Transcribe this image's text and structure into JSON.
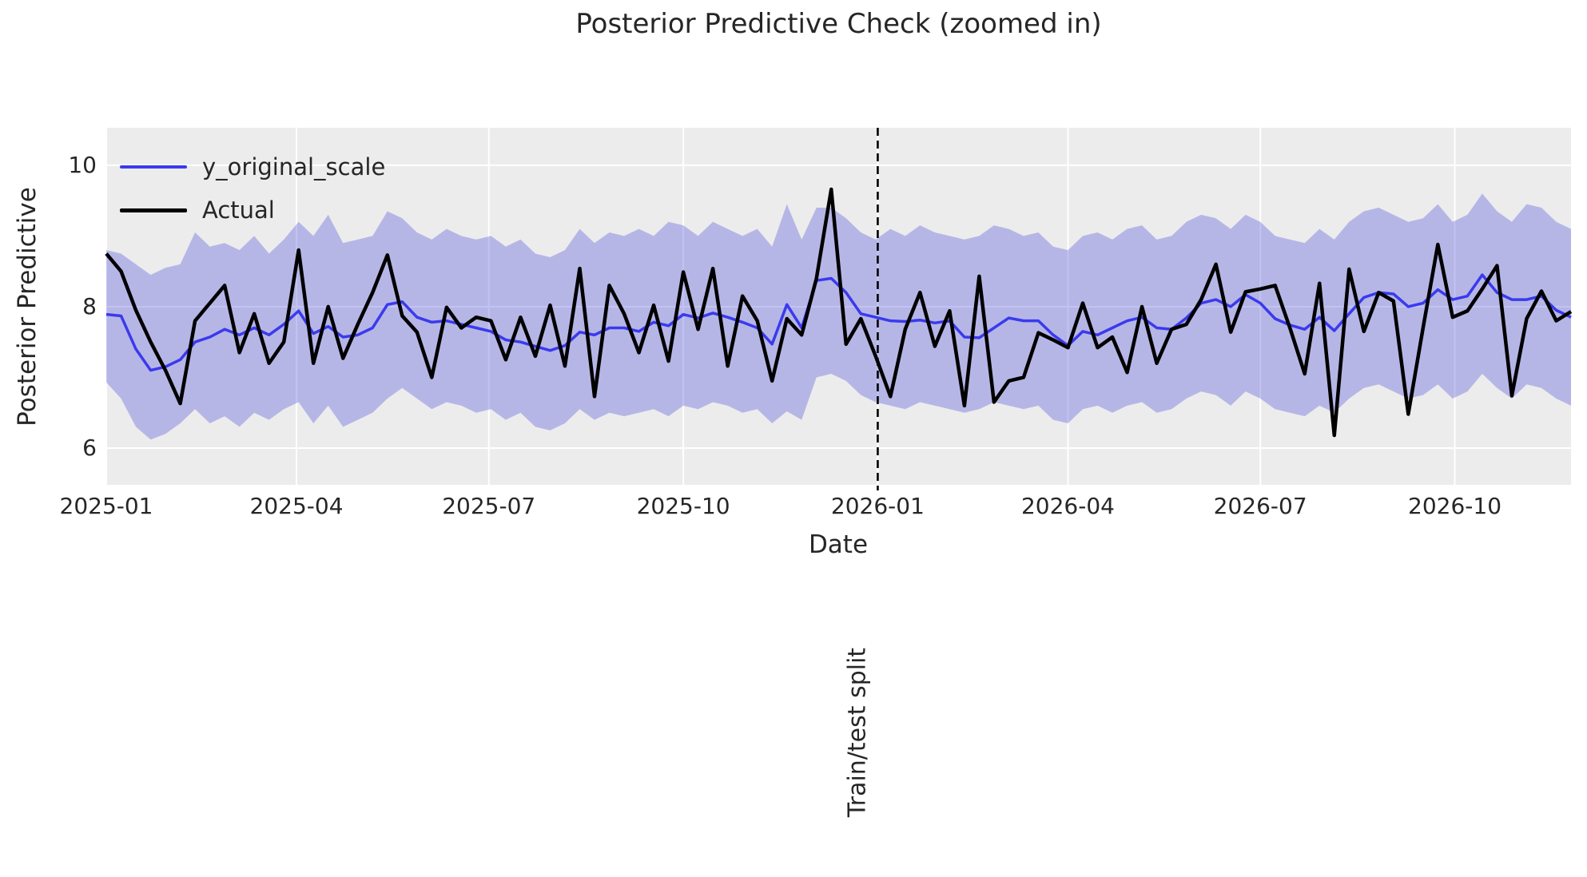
{
  "chart_data": {
    "type": "line",
    "title": "Posterior Predictive Check (zoomed in)",
    "xlabel": "Date",
    "ylabel": "Posterior Predictive",
    "grid": true,
    "legend_position": "upper left",
    "plot_bg_color": "#ececec",
    "grid_color": "#ffffff",
    "band_color": "#5252de",
    "band_opacity": 0.35,
    "ylim": [
      5.48,
      10.53
    ],
    "yticks": [
      6,
      8,
      10
    ],
    "xticks": [
      {
        "date": "2025-01-01",
        "label": "2025-01"
      },
      {
        "date": "2025-04-01",
        "label": "2025-04"
      },
      {
        "date": "2025-07-01",
        "label": "2025-07"
      },
      {
        "date": "2025-10-01",
        "label": "2025-10"
      },
      {
        "date": "2026-01-01",
        "label": "2026-01"
      },
      {
        "date": "2026-04-01",
        "label": "2026-04"
      },
      {
        "date": "2026-07-01",
        "label": "2026-07"
      },
      {
        "date": "2026-10-01",
        "label": "2026-10"
      }
    ],
    "annotation": {
      "split_date": "2026-01-01",
      "split_label": "Train/test split"
    },
    "x": [
      "2025-01-01",
      "2025-01-08",
      "2025-01-15",
      "2025-01-22",
      "2025-01-29",
      "2025-02-05",
      "2025-02-12",
      "2025-02-19",
      "2025-02-26",
      "2025-03-05",
      "2025-03-12",
      "2025-03-19",
      "2025-03-26",
      "2025-04-02",
      "2025-04-09",
      "2025-04-16",
      "2025-04-23",
      "2025-04-30",
      "2025-05-07",
      "2025-05-14",
      "2025-05-21",
      "2025-05-28",
      "2025-06-04",
      "2025-06-11",
      "2025-06-18",
      "2025-06-25",
      "2025-07-02",
      "2025-07-09",
      "2025-07-16",
      "2025-07-23",
      "2025-07-30",
      "2025-08-06",
      "2025-08-13",
      "2025-08-20",
      "2025-08-27",
      "2025-09-03",
      "2025-09-10",
      "2025-09-17",
      "2025-09-24",
      "2025-10-01",
      "2025-10-08",
      "2025-10-15",
      "2025-10-22",
      "2025-10-29",
      "2025-11-05",
      "2025-11-12",
      "2025-11-19",
      "2025-11-26",
      "2025-12-03",
      "2025-12-10",
      "2025-12-17",
      "2025-12-24",
      "2025-12-31",
      "2026-01-07",
      "2026-01-14",
      "2026-01-21",
      "2026-01-28",
      "2026-02-04",
      "2026-02-11",
      "2026-02-18",
      "2026-02-25",
      "2026-03-04",
      "2026-03-11",
      "2026-03-18",
      "2026-03-25",
      "2026-04-01",
      "2026-04-08",
      "2026-04-15",
      "2026-04-22",
      "2026-04-29",
      "2026-05-06",
      "2026-05-13",
      "2026-05-20",
      "2026-05-27",
      "2026-06-03",
      "2026-06-10",
      "2026-06-17",
      "2026-06-24",
      "2026-07-01",
      "2026-07-08",
      "2026-07-15",
      "2026-07-22",
      "2026-07-29",
      "2026-08-05",
      "2026-08-12",
      "2026-08-19",
      "2026-08-26",
      "2026-09-02",
      "2026-09-09",
      "2026-09-16",
      "2026-09-23",
      "2026-09-30",
      "2026-10-07",
      "2026-10-14",
      "2026-10-21",
      "2026-10-28",
      "2026-11-04",
      "2026-11-11",
      "2026-11-18",
      "2026-11-25"
    ],
    "series": [
      {
        "name": "y_original_scale",
        "color": "#3a3aee",
        "values": [
          7.89,
          7.87,
          7.4,
          7.1,
          7.15,
          7.25,
          7.5,
          7.57,
          7.68,
          7.6,
          7.7,
          7.6,
          7.75,
          7.94,
          7.62,
          7.72,
          7.57,
          7.6,
          7.7,
          8.03,
          8.07,
          7.85,
          7.78,
          7.8,
          7.75,
          7.7,
          7.65,
          7.53,
          7.5,
          7.44,
          7.38,
          7.45,
          7.64,
          7.6,
          7.7,
          7.7,
          7.65,
          7.78,
          7.73,
          7.89,
          7.84,
          7.91,
          7.85,
          7.78,
          7.7,
          7.47,
          8.03,
          7.7,
          8.37,
          8.4,
          8.2,
          7.9,
          7.85,
          7.8,
          7.79,
          7.81,
          7.77,
          7.8,
          7.57,
          7.56,
          7.7,
          7.84,
          7.8,
          7.8,
          7.6,
          7.45,
          7.65,
          7.6,
          7.7,
          7.8,
          7.85,
          7.7,
          7.68,
          7.84,
          8.05,
          8.1,
          8.0,
          8.17,
          8.05,
          7.83,
          7.74,
          7.68,
          7.85,
          7.66,
          7.9,
          8.13,
          8.2,
          8.18,
          8.0,
          8.05,
          8.24,
          8.1,
          8.15,
          8.45,
          8.2,
          8.1,
          8.1,
          8.15,
          7.95,
          7.85
        ]
      },
      {
        "name": "Actual",
        "color": "#000000",
        "values": [
          8.75,
          8.5,
          7.95,
          7.5,
          7.1,
          6.63,
          7.8,
          8.05,
          8.3,
          7.35,
          7.9,
          7.2,
          7.5,
          8.8,
          7.2,
          8.0,
          7.27,
          7.75,
          8.2,
          8.73,
          7.87,
          7.64,
          7.0,
          7.99,
          7.7,
          7.85,
          7.8,
          7.25,
          7.85,
          7.3,
          8.02,
          7.16,
          8.54,
          6.73,
          8.3,
          7.9,
          7.35,
          8.02,
          7.23,
          8.49,
          7.68,
          8.54,
          7.16,
          8.15,
          7.8,
          6.95,
          7.83,
          7.6,
          8.4,
          9.66,
          7.47,
          7.83,
          7.3,
          6.73,
          7.68,
          8.2,
          7.44,
          7.94,
          6.6,
          8.43,
          6.65,
          6.95,
          7.0,
          7.63,
          7.53,
          7.42,
          8.05,
          7.42,
          7.57,
          7.07,
          8.0,
          7.2,
          7.68,
          7.75,
          8.1,
          8.6,
          7.64,
          8.21,
          8.25,
          8.3,
          7.7,
          7.05,
          8.33,
          6.18,
          8.53,
          7.65,
          8.2,
          8.08,
          6.48,
          7.7,
          8.88,
          7.85,
          7.94,
          8.25,
          8.58,
          6.74,
          7.83,
          8.22,
          7.8,
          7.93
        ]
      }
    ],
    "band": {
      "name": "posterior predictive interval",
      "upper": [
        8.8,
        8.75,
        8.6,
        8.45,
        8.55,
        8.6,
        9.05,
        8.85,
        8.9,
        8.8,
        9.0,
        8.75,
        8.95,
        9.2,
        9.0,
        9.3,
        8.9,
        8.95,
        9.0,
        9.35,
        9.25,
        9.05,
        8.95,
        9.1,
        9.0,
        8.95,
        9.0,
        8.85,
        8.95,
        8.75,
        8.7,
        8.8,
        9.1,
        8.9,
        9.05,
        9.0,
        9.1,
        9.0,
        9.2,
        9.15,
        9.0,
        9.2,
        9.1,
        9.0,
        9.1,
        8.85,
        9.45,
        8.95,
        9.4,
        9.4,
        9.25,
        9.05,
        8.95,
        9.1,
        9.0,
        9.15,
        9.05,
        9.0,
        8.95,
        9.0,
        9.15,
        9.1,
        9.0,
        9.05,
        8.85,
        8.8,
        9.0,
        9.05,
        8.95,
        9.1,
        9.15,
        8.95,
        9.0,
        9.2,
        9.3,
        9.25,
        9.1,
        9.3,
        9.2,
        9.0,
        8.95,
        8.9,
        9.1,
        8.95,
        9.2,
        9.35,
        9.4,
        9.3,
        9.2,
        9.25,
        9.45,
        9.2,
        9.3,
        9.6,
        9.35,
        9.2,
        9.45,
        9.4,
        9.2,
        9.1
      ],
      "lower": [
        6.93,
        6.7,
        6.3,
        6.12,
        6.2,
        6.35,
        6.55,
        6.35,
        6.45,
        6.3,
        6.5,
        6.4,
        6.55,
        6.65,
        6.35,
        6.6,
        6.3,
        6.4,
        6.5,
        6.7,
        6.85,
        6.7,
        6.55,
        6.65,
        6.6,
        6.5,
        6.55,
        6.4,
        6.5,
        6.3,
        6.25,
        6.35,
        6.55,
        6.4,
        6.5,
        6.45,
        6.5,
        6.55,
        6.45,
        6.6,
        6.55,
        6.65,
        6.6,
        6.5,
        6.55,
        6.35,
        6.52,
        6.4,
        7.0,
        7.05,
        6.95,
        6.75,
        6.65,
        6.6,
        6.55,
        6.65,
        6.6,
        6.55,
        6.5,
        6.55,
        6.65,
        6.6,
        6.55,
        6.6,
        6.4,
        6.35,
        6.55,
        6.6,
        6.5,
        6.6,
        6.65,
        6.5,
        6.55,
        6.7,
        6.8,
        6.75,
        6.6,
        6.8,
        6.7,
        6.55,
        6.5,
        6.45,
        6.6,
        6.5,
        6.7,
        6.85,
        6.9,
        6.8,
        6.7,
        6.75,
        6.9,
        6.7,
        6.8,
        7.05,
        6.85,
        6.7,
        6.9,
        6.85,
        6.7,
        6.6
      ]
    }
  },
  "legend": {
    "items": [
      {
        "label": "y_original_scale",
        "color": "#3a3aee"
      },
      {
        "label": "Actual",
        "color": "#000000"
      }
    ]
  }
}
